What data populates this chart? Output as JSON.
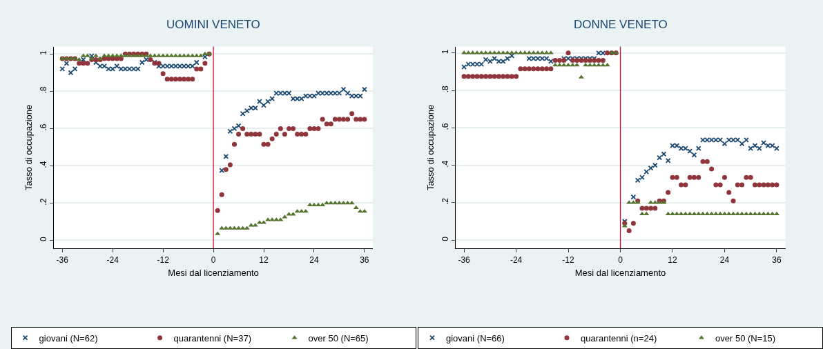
{
  "chart_data": [
    {
      "type": "scatter",
      "title": "UOMINI VENETO",
      "xlabel": "Mesi dal licenziamento",
      "ylabel": "Tasso di occupazione",
      "x": [
        -36,
        -35,
        -34,
        -33,
        -32,
        -31,
        -30,
        -29,
        -28,
        -27,
        -26,
        -25,
        -24,
        -23,
        -22,
        -21,
        -20,
        -19,
        -18,
        -17,
        -16,
        -15,
        -14,
        -13,
        -12,
        -11,
        -10,
        -9,
        -8,
        -7,
        -6,
        -5,
        -4,
        -3,
        -2,
        -1,
        0,
        1,
        2,
        3,
        4,
        5,
        6,
        7,
        8,
        9,
        10,
        11,
        12,
        13,
        14,
        15,
        16,
        17,
        18,
        19,
        20,
        21,
        22,
        23,
        24,
        25,
        26,
        27,
        28,
        29,
        30,
        31,
        32,
        33,
        34,
        35,
        36
      ],
      "xlim": [
        -38,
        38
      ],
      "ylim": [
        -0.044,
        1.04
      ],
      "xticks": [
        -36,
        -24,
        -12,
        0,
        12,
        24,
        36
      ],
      "yticks": [
        {
          "value": 0,
          "label": "0"
        },
        {
          "value": 0.2,
          "label": ".2"
        },
        {
          "value": 0.4,
          "label": ".4"
        },
        {
          "value": 0.6,
          "label": ".6"
        },
        {
          "value": 0.8,
          "label": ".8"
        },
        {
          "value": 1,
          "label": "1"
        }
      ],
      "grid": "y",
      "legend": "bottom",
      "ref_lines": [
        {
          "axis": "x",
          "value": 0,
          "color": "#c8102e"
        }
      ],
      "series": [
        {
          "name": "giovani (N=62)",
          "color": "#1a476f",
          "marker": "cross",
          "values": [
            0.92,
            0.95,
            0.9,
            0.92,
            null,
            0.97,
            null,
            0.99,
            0.955,
            0.935,
            0.935,
            0.92,
            0.92,
            0.935,
            0.92,
            0.92,
            0.92,
            0.92,
            0.92,
            0.955,
            0.97,
            null,
            0.955,
            0.935,
            0.935,
            0.935,
            0.935,
            0.935,
            0.935,
            0.935,
            0.935,
            0.935,
            0.955,
            null,
            0.985,
            null,
            null,
            null,
            0.375,
            0.45,
            0.585,
            0.6,
            0.615,
            0.68,
            0.695,
            0.71,
            0.71,
            0.745,
            0.725,
            0.745,
            0.76,
            0.79,
            0.79,
            0.79,
            0.79,
            0.76,
            0.76,
            0.76,
            0.775,
            0.775,
            0.775,
            0.79,
            0.79,
            0.79,
            0.79,
            0.79,
            0.79,
            0.81,
            0.79,
            0.775,
            0.775,
            0.775,
            0.81
          ]
        },
        {
          "name": "quarantenni (N=37)",
          "color": "#90353b",
          "marker": "circle",
          "values": [
            0.975,
            0.975,
            0.975,
            0.975,
            0.95,
            0.95,
            0.95,
            0.97,
            0.97,
            0.97,
            0.975,
            0.975,
            0.975,
            0.975,
            0.975,
            1.0,
            1.0,
            1.0,
            1.0,
            1.0,
            1.0,
            0.97,
            0.95,
            0.95,
            0.895,
            0.865,
            0.865,
            0.865,
            0.865,
            0.865,
            0.865,
            0.865,
            0.92,
            0.92,
            0.95,
            1.0,
            null,
            0.16,
            0.245,
            0.38,
            0.405,
            0.515,
            0.57,
            0.6,
            0.57,
            0.57,
            0.57,
            0.57,
            0.515,
            0.515,
            0.545,
            0.57,
            0.6,
            0.57,
            0.6,
            0.6,
            0.57,
            0.57,
            0.57,
            0.6,
            0.6,
            0.6,
            0.65,
            0.625,
            0.625,
            0.65,
            0.65,
            0.65,
            0.65,
            0.68,
            0.65,
            0.65,
            0.65
          ]
        },
        {
          "name": "over 50 (N=65)",
          "color": "#55752f",
          "marker": "triangle",
          "values": [
            0.975,
            0.975,
            0.975,
            0.975,
            0.97,
            0.99,
            0.99,
            0.975,
            0.99,
            0.975,
            0.99,
            0.99,
            0.99,
            0.99,
            0.99,
            0.99,
            0.99,
            0.99,
            0.99,
            0.99,
            0.99,
            0.99,
            0.99,
            0.99,
            0.99,
            0.99,
            0.99,
            0.99,
            0.99,
            0.99,
            0.99,
            0.99,
            0.99,
            0.99,
            1.0,
            1.0,
            null,
            0.035,
            0.065,
            0.065,
            0.065,
            0.065,
            0.065,
            0.065,
            0.065,
            0.08,
            0.08,
            0.095,
            0.095,
            0.11,
            0.11,
            0.11,
            0.11,
            0.125,
            0.14,
            0.14,
            0.155,
            0.155,
            0.155,
            0.19,
            0.19,
            0.19,
            0.19,
            0.2,
            0.2,
            0.2,
            0.2,
            0.2,
            0.2,
            0.2,
            0.175,
            0.155,
            0.155
          ]
        }
      ]
    },
    {
      "type": "scatter",
      "title": "DONNE VENETO",
      "xlabel": "Mesi dal licenziamento",
      "ylabel": "Tasso di occupazione",
      "x": [
        -36,
        -35,
        -34,
        -33,
        -32,
        -31,
        -30,
        -29,
        -28,
        -27,
        -26,
        -25,
        -24,
        -23,
        -22,
        -21,
        -20,
        -19,
        -18,
        -17,
        -16,
        -15,
        -14,
        -13,
        -12,
        -11,
        -10,
        -9,
        -8,
        -7,
        -6,
        -5,
        -4,
        -3,
        -2,
        -1,
        0,
        1,
        2,
        3,
        4,
        5,
        6,
        7,
        8,
        9,
        10,
        11,
        12,
        13,
        14,
        15,
        16,
        17,
        18,
        19,
        20,
        21,
        22,
        23,
        24,
        25,
        26,
        27,
        28,
        29,
        30,
        31,
        32,
        33,
        34,
        35,
        36
      ],
      "xlim": [
        -38,
        38
      ],
      "ylim": [
        -0.045,
        1.034
      ],
      "xticks": [
        -36,
        -24,
        -12,
        0,
        12,
        24,
        36
      ],
      "yticks": [
        {
          "value": 0,
          "label": "0"
        },
        {
          "value": 0.2,
          "label": ".2"
        },
        {
          "value": 0.4,
          "label": ".4"
        },
        {
          "value": 0.6,
          "label": ".6"
        },
        {
          "value": 0.8,
          "label": ".8"
        },
        {
          "value": 1,
          "label": "1"
        }
      ],
      "grid": "y",
      "legend": "bottom",
      "ref_lines": [
        {
          "axis": "x",
          "value": 0,
          "color": "#c8102e"
        }
      ],
      "series": [
        {
          "name": "giovani (N=66)",
          "color": "#1a476f",
          "marker": "cross",
          "values": [
            0.925,
            0.94,
            0.94,
            0.94,
            0.94,
            0.965,
            0.955,
            0.97,
            0.955,
            0.955,
            0.97,
            0.985,
            null,
            null,
            null,
            0.97,
            0.97,
            0.97,
            0.97,
            0.97,
            0.955,
            null,
            null,
            0.97,
            0.97,
            0.97,
            0.97,
            0.97,
            0.97,
            0.97,
            0.97,
            1.0,
            1.0,
            null,
            null,
            null,
            null,
            0.1,
            null,
            0.23,
            0.32,
            0.335,
            0.365,
            0.385,
            0.4,
            0.44,
            0.46,
            0.425,
            0.505,
            0.505,
            0.49,
            0.49,
            0.475,
            0.455,
            0.49,
            0.535,
            0.535,
            0.535,
            0.535,
            0.535,
            0.515,
            0.535,
            0.535,
            0.535,
            0.515,
            0.535,
            0.49,
            0.505,
            0.49,
            0.52,
            0.505,
            0.505,
            0.49
          ]
        },
        {
          "name": "quarantenni (n=24)",
          "color": "#90353b",
          "marker": "circle",
          "values": [
            0.875,
            0.875,
            0.875,
            0.875,
            0.875,
            0.875,
            0.875,
            0.875,
            0.875,
            0.875,
            0.875,
            0.875,
            0.875,
            0.915,
            0.915,
            0.915,
            0.915,
            0.915,
            0.915,
            0.915,
            0.915,
            0.96,
            0.96,
            0.96,
            1.0,
            0.96,
            0.96,
            0.96,
            0.96,
            0.96,
            0.96,
            0.96,
            0.96,
            1.0,
            1.0,
            1.0,
            null,
            0.09,
            0.05,
            0.09,
            0.21,
            0.17,
            0.17,
            0.17,
            0.17,
            0.21,
            0.21,
            0.255,
            0.335,
            0.335,
            0.295,
            0.295,
            0.335,
            0.335,
            0.335,
            0.42,
            0.42,
            0.38,
            0.295,
            0.295,
            0.335,
            0.255,
            0.21,
            0.295,
            0.295,
            0.335,
            0.335,
            0.295,
            0.295,
            0.295,
            0.295,
            0.295,
            0.295
          ]
        },
        {
          "name": "over 50 (N=15)",
          "color": "#55752f",
          "marker": "triangle",
          "values": [
            1.0,
            1.0,
            1.0,
            1.0,
            1.0,
            1.0,
            1.0,
            1.0,
            1.0,
            1.0,
            1.0,
            1.0,
            1.0,
            1.0,
            1.0,
            1.0,
            1.0,
            1.0,
            1.0,
            1.0,
            1.0,
            0.935,
            0.935,
            0.935,
            0.935,
            0.935,
            0.935,
            0.87,
            0.935,
            0.935,
            0.935,
            0.935,
            0.935,
            0.935,
            1.0,
            1.0,
            null,
            0.075,
            0.2,
            0.2,
            0.2,
            0.14,
            0.14,
            0.2,
            0.2,
            0.2,
            0.2,
            0.14,
            0.14,
            0.14,
            0.14,
            0.14,
            0.14,
            0.14,
            0.14,
            0.14,
            0.14,
            0.14,
            0.14,
            0.14,
            0.14,
            0.14,
            0.14,
            0.14,
            0.14,
            0.14,
            0.14,
            0.14,
            0.14,
            0.14,
            0.14,
            0.14,
            0.14
          ]
        }
      ]
    }
  ]
}
